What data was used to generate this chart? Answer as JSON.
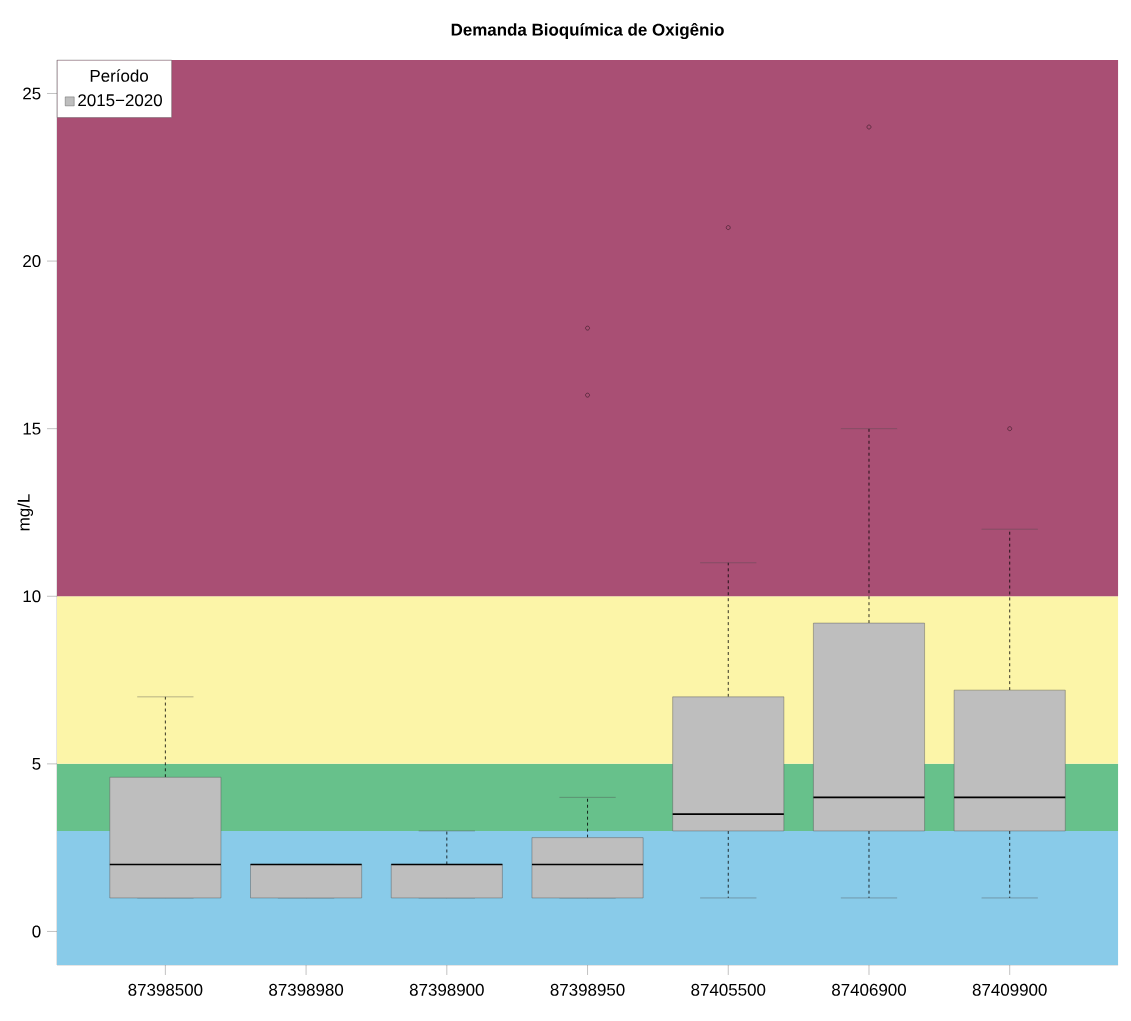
{
  "chart_data": {
    "type": "box",
    "title": "Demanda Bioquímica de Oxigênio",
    "ylabel": "mg/L",
    "legend_title": "Período",
    "legend": "top left",
    "categories": [
      "87398500",
      "87398980",
      "87398900",
      "87398950",
      "87405500",
      "87406900",
      "87409900"
    ],
    "series": [
      {
        "name": "2015−2020",
        "color": "#bebebe",
        "boxes": [
          {
            "low": 1,
            "q1": 1,
            "median": 2,
            "q3": 4.6,
            "high": 7
          },
          {
            "low": 1,
            "q1": 1,
            "median": 2,
            "q3": 2,
            "high": 2
          },
          {
            "low": 1,
            "q1": 1,
            "median": 2,
            "q3": 2,
            "high": 3
          },
          {
            "low": 1,
            "q1": 1,
            "median": 2,
            "q3": 2.8,
            "high": 4,
            "outliers": [
              16,
              18
            ]
          },
          {
            "low": 1,
            "q1": 3,
            "median": 3.5,
            "q3": 7,
            "high": 11,
            "outliers": [
              21
            ]
          },
          {
            "low": 1,
            "q1": 3,
            "median": 4,
            "q3": 9.2,
            "high": 15,
            "outliers": [
              24
            ]
          },
          {
            "low": 1,
            "q1": 3,
            "median": 4,
            "q3": 7.2,
            "high": 12,
            "outliers": [
              15
            ]
          }
        ]
      }
    ],
    "ylim": [
      -1,
      26
    ],
    "yticks": [
      0,
      5,
      10,
      15,
      20,
      25
    ],
    "bands": [
      {
        "axis": "y",
        "from": -1,
        "to": 3,
        "color": "#89cbe9"
      },
      {
        "axis": "y",
        "from": 3,
        "to": 5,
        "color": "#67c18b"
      },
      {
        "axis": "y",
        "from": 5,
        "to": 10,
        "color": "#fcf5a8"
      },
      {
        "axis": "y",
        "from": 10,
        "to": 26,
        "color": "#a94f74"
      }
    ]
  }
}
